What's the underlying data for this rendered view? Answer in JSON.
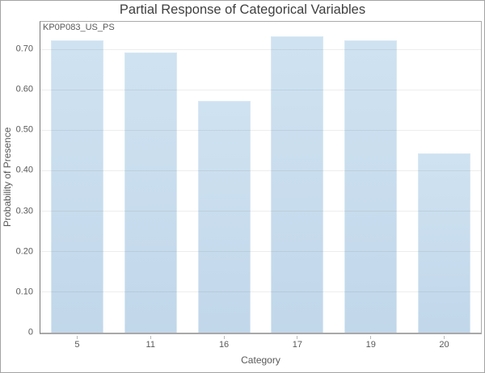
{
  "window": {
    "title": "Partial Response of Categorical Variables"
  },
  "chart_data": {
    "type": "bar",
    "title": "Partial Response of Categorical Variables",
    "annotation": "KP0P083_US_PS",
    "categories": [
      "5",
      "11",
      "16",
      "17",
      "19",
      "20"
    ],
    "values": [
      0.725,
      0.695,
      0.575,
      0.735,
      0.725,
      0.445
    ],
    "xlabel": "Category",
    "ylabel": "Probability of Presence",
    "ylim": [
      0,
      0.77
    ],
    "yticks": [
      {
        "v": 0.0,
        "label": "0"
      },
      {
        "v": 0.1,
        "label": "0.10"
      },
      {
        "v": 0.2,
        "label": "0.20"
      },
      {
        "v": 0.3,
        "label": "0.30"
      },
      {
        "v": 0.4,
        "label": "0.40"
      },
      {
        "v": 0.5,
        "label": "0.50"
      },
      {
        "v": 0.6,
        "label": "0.60"
      },
      {
        "v": 0.7,
        "label": "0.70"
      }
    ],
    "grid": "horizontal",
    "legend": "none",
    "colors": {
      "bar_fill_top": "#cfe2f1",
      "bar_fill_bottom": "#c1d7ea",
      "bar_edge": "#d9e8f3",
      "gridline_color": "rgba(110,110,110,0.12)",
      "title_color": "#3f3f3f",
      "label_color": "#595959",
      "plot_border": "#ababab",
      "y_axis_color": "#7a7a7a",
      "x_axis_color": "#a9a9a9",
      "window_border": "#a3a3a3"
    }
  }
}
